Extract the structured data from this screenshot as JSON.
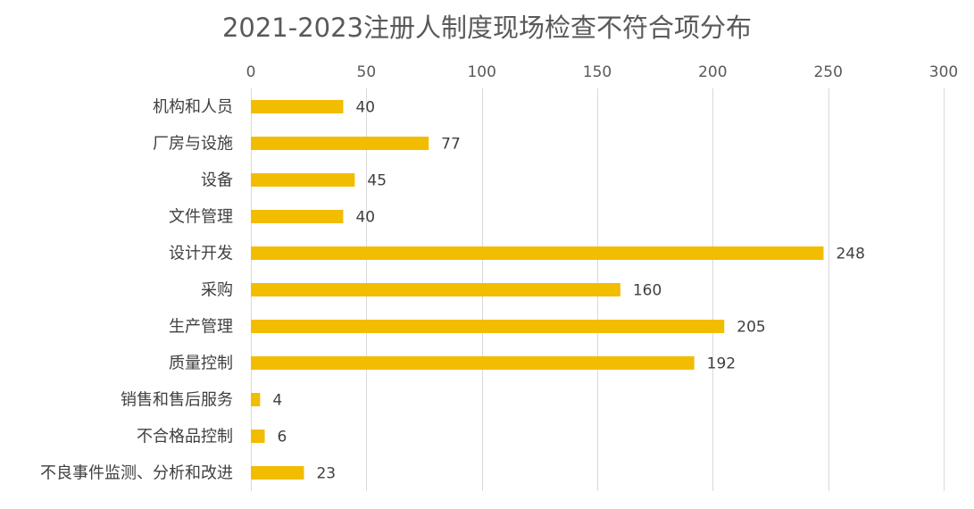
{
  "chart_data": {
    "type": "bar",
    "orientation": "horizontal",
    "title": "2021-2023注册人制度现场检查不符合项分布",
    "xlabel": "",
    "ylabel": "",
    "categories": [
      "机构和人员",
      "厂房与设施",
      "设备",
      "文件管理",
      "设计开发",
      "采购",
      "生产管理",
      "质量控制",
      "销售和售后服务",
      "不合格品控制",
      "不良事件监测、分析和改进"
    ],
    "values": [
      40,
      77,
      45,
      40,
      248,
      160,
      205,
      192,
      4,
      6,
      23
    ],
    "xlim": [
      0,
      300
    ],
    "xticks": [
      0,
      50,
      100,
      150,
      200,
      250,
      300
    ],
    "x_axis_position": "top",
    "grid": true,
    "legend": "none",
    "data_labels": true,
    "bar_color": "#F2BC00",
    "gridline_color": "#D9D9D9"
  }
}
